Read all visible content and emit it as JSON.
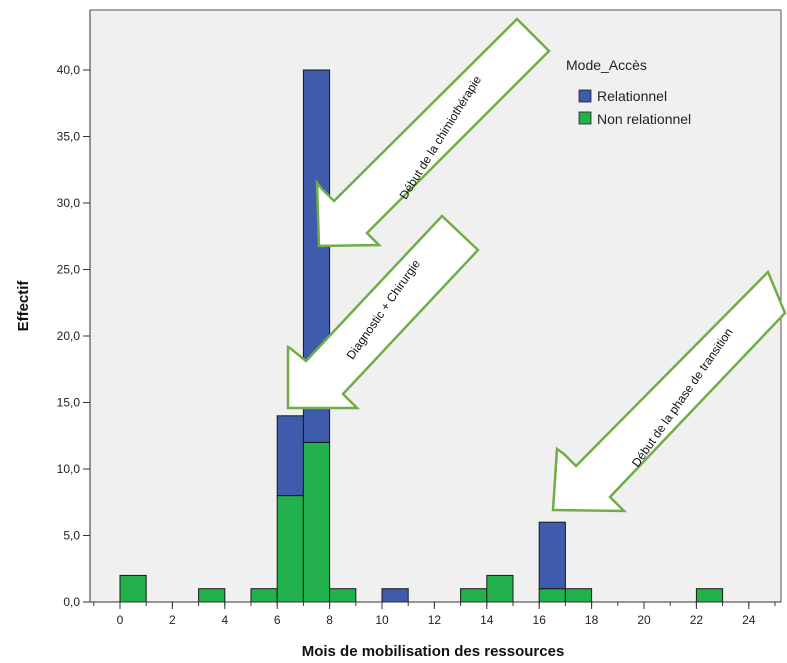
{
  "chart_data": {
    "type": "bar",
    "stacked": true,
    "xlabel": "Mois de mobilisation des ressources",
    "ylabel": "Effectif",
    "xlim": [
      -1,
      25
    ],
    "ylim": [
      0,
      44
    ],
    "x_ticks": [
      0,
      2,
      4,
      6,
      8,
      10,
      12,
      14,
      16,
      18,
      20,
      22,
      24
    ],
    "y_ticks": [
      0,
      5,
      10,
      15,
      20,
      25,
      30,
      35,
      40
    ],
    "y_tick_labels": [
      "0,0",
      "5,0",
      "10,0",
      "15,0",
      "20,0",
      "25,0",
      "30,0",
      "35,0",
      "40,0"
    ],
    "bin_width": 1,
    "bins": [
      {
        "start": 0,
        "non_relationnel": 2,
        "relationnel": 0
      },
      {
        "start": 3,
        "non_relationnel": 1,
        "relationnel": 0
      },
      {
        "start": 5,
        "non_relationnel": 1,
        "relationnel": 0
      },
      {
        "start": 6,
        "non_relationnel": 8,
        "relationnel": 6
      },
      {
        "start": 7,
        "non_relationnel": 12,
        "relationnel": 28
      },
      {
        "start": 8,
        "non_relationnel": 1,
        "relationnel": 0
      },
      {
        "start": 10,
        "non_relationnel": 0,
        "relationnel": 1
      },
      {
        "start": 13,
        "non_relationnel": 1,
        "relationnel": 0
      },
      {
        "start": 14,
        "non_relationnel": 2,
        "relationnel": 0
      },
      {
        "start": 16,
        "non_relationnel": 1,
        "relationnel": 5
      },
      {
        "start": 17,
        "non_relationnel": 1,
        "relationnel": 0
      },
      {
        "start": 22,
        "non_relationnel": 1,
        "relationnel": 0
      }
    ],
    "legend": {
      "title": "Mode_Accès",
      "position": "top-right",
      "entries": [
        {
          "key": "relationnel",
          "label": "Relationnel",
          "color": "#3f5bab"
        },
        {
          "key": "non_relationnel",
          "label": "Non relationnel",
          "color": "#22b14c"
        }
      ]
    },
    "annotations": [
      {
        "text": "Début de la chimiothérapie"
      },
      {
        "text": "Diagnostic + Chirurgie"
      },
      {
        "text": "Début de la phase de transition"
      }
    ],
    "grid": false
  },
  "colors": {
    "plot_background": "#f0f0f0",
    "arrow_outline": "#70ad47",
    "arrow_fill": "#ffffff"
  }
}
